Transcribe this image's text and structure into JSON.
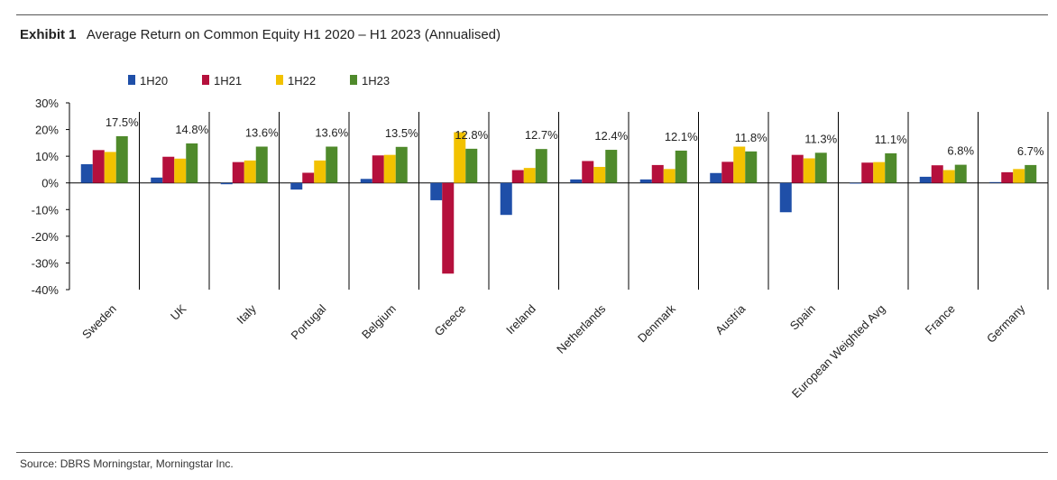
{
  "header": {
    "exhibit_label": "Exhibit 1",
    "title": "Average Return on Common Equity H1 2020 – H1 2023 (Annualised)"
  },
  "footer": {
    "source": "Source: DBRS Morningstar, Morningstar Inc."
  },
  "chart_data": {
    "type": "bar",
    "categories": [
      "Sweden",
      "UK",
      "Italy",
      "Portugal",
      "Belgium",
      "Greece",
      "Ireland",
      "Netherlands",
      "Denmark",
      "Austria",
      "Spain",
      "European Weighted Avg",
      "France",
      "Germany"
    ],
    "series": [
      {
        "name": "1H20",
        "color": "#1f4fa8",
        "values": [
          7.0,
          2.0,
          -0.5,
          -2.5,
          1.5,
          -6.5,
          -12.0,
          1.3,
          1.3,
          3.7,
          -11.0,
          0.0,
          2.3,
          0.3
        ]
      },
      {
        "name": "1H21",
        "color": "#b5103c",
        "values": [
          12.3,
          9.8,
          7.8,
          3.8,
          10.3,
          -34.0,
          4.8,
          8.2,
          6.7,
          7.9,
          10.5,
          7.6,
          6.6,
          4.0
        ]
      },
      {
        "name": "1H22",
        "color": "#f2c200",
        "values": [
          11.6,
          9.1,
          8.4,
          8.4,
          10.5,
          19.0,
          5.6,
          6.0,
          5.2,
          13.6,
          9.2,
          7.8,
          4.8,
          5.2
        ]
      },
      {
        "name": "1H23",
        "color": "#4f8a2b",
        "values": [
          17.5,
          14.8,
          13.6,
          13.6,
          13.5,
          12.8,
          12.7,
          12.4,
          12.1,
          11.8,
          11.3,
          11.1,
          6.8,
          6.7
        ]
      }
    ],
    "data_labels": [
      "17.5%",
      "14.8%",
      "13.6%",
      "13.6%",
      "13.5%",
      "12.8%",
      "12.7%",
      "12.4%",
      "12.1%",
      "11.8%",
      "11.3%",
      "11.1%",
      "6.8%",
      "6.7%"
    ],
    "y_ticks": [
      "30%",
      "20%",
      "10%",
      "0%",
      "-10%",
      "-20%",
      "-30%",
      "-40%"
    ],
    "ylim": [
      -40,
      30
    ],
    "legend_position": "top-left",
    "grid": false
  }
}
